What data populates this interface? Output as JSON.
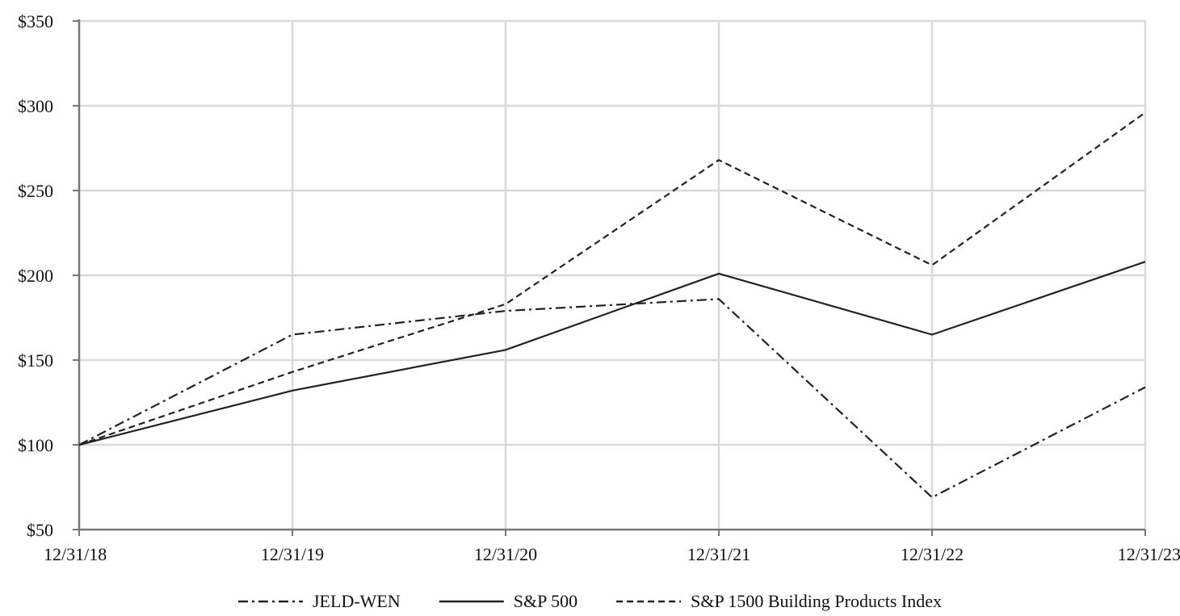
{
  "chart_data": {
    "type": "line",
    "title": "",
    "xlabel": "",
    "ylabel": "",
    "categories": [
      "12/31/18",
      "12/31/19",
      "12/31/20",
      "12/31/21",
      "12/31/22",
      "12/31/23"
    ],
    "ylim": [
      50,
      350
    ],
    "y_ticks": [
      50,
      100,
      150,
      200,
      250,
      300,
      350
    ],
    "y_tick_labels": [
      "$50",
      "$100",
      "$150",
      "$200",
      "$250",
      "$300",
      "$350"
    ],
    "grid": true,
    "legend_position": "bottom",
    "series": [
      {
        "name": "JELD-WEN",
        "values": [
          100,
          165,
          179,
          186,
          69,
          134
        ],
        "style": "dash-dot",
        "color": "#222222"
      },
      {
        "name": "S&P 500",
        "values": [
          100,
          132,
          156,
          201,
          165,
          208
        ],
        "style": "solid",
        "color": "#222222"
      },
      {
        "name": "S&P 1500 Building Products Index",
        "values": [
          100,
          143,
          183,
          268,
          206,
          296
        ],
        "style": "dashed",
        "color": "#222222"
      }
    ]
  }
}
